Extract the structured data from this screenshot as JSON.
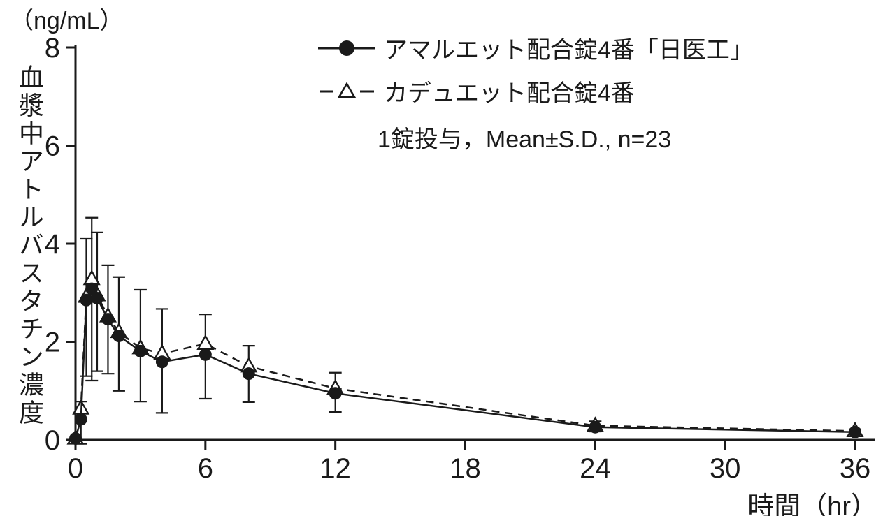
{
  "figure": {
    "unit_label": "（ng/mL）",
    "y_axis_title": "血漿中アトルバスタチン濃度",
    "x_axis_title": "時間（hr）",
    "legend": {
      "series1_label": "アマルエット配合錠4番「日医工」",
      "series2_label": "カデュエット配合錠4番",
      "note": "1錠投与，Mean±S.D., n=23"
    }
  },
  "chart_data": {
    "type": "line",
    "title": "",
    "xlabel": "時間（hr）",
    "ylabel": "血漿中アトルバスタチン濃度（ng/mL）",
    "xlim": [
      0,
      36
    ],
    "ylim": [
      0,
      8
    ],
    "x_ticks": [
      0,
      6,
      12,
      18,
      24,
      30,
      36
    ],
    "y_ticks": [
      0,
      2,
      4,
      6,
      8
    ],
    "x": [
      0,
      0.25,
      0.5,
      0.75,
      1,
      1.5,
      2,
      3,
      4,
      6,
      8,
      12,
      24,
      36
    ],
    "series": [
      {
        "name": "アマルエット配合錠4番「日医工」",
        "marker": "filled-circle",
        "line": "solid",
        "values": [
          0.03,
          0.42,
          2.85,
          3.08,
          2.89,
          2.46,
          2.12,
          1.81,
          1.59,
          1.74,
          1.35,
          0.95,
          0.26,
          0.16
        ]
      },
      {
        "name": "カデュエット配合錠4番",
        "marker": "open-triangle",
        "line": "dashed",
        "values": [
          0.03,
          0.64,
          2.92,
          3.28,
          2.95,
          2.52,
          2.2,
          1.87,
          1.76,
          1.96,
          1.5,
          1.05,
          0.29,
          0.18
        ]
      }
    ],
    "error_bars": {
      "description": "Mean±S.D. (n=23); bar extents as drawn in figure",
      "top": [
        null,
        0.78,
        4.1,
        4.53,
        4.23,
        3.56,
        3.32,
        3.06,
        2.67,
        2.56,
        1.92,
        1.37,
        0.38,
        0.22
      ],
      "bottom": [
        null,
        -0.08,
        1.3,
        1.21,
        1.4,
        1.35,
        1.0,
        0.78,
        0.55,
        0.84,
        0.77,
        0.57,
        0.17,
        0.1
      ]
    },
    "annotation": "1錠投与，Mean±S.D., n=23",
    "legend_position": "top-center",
    "grid": false
  },
  "colors": {
    "ink": "#1a1a1a",
    "background": "#ffffff"
  }
}
